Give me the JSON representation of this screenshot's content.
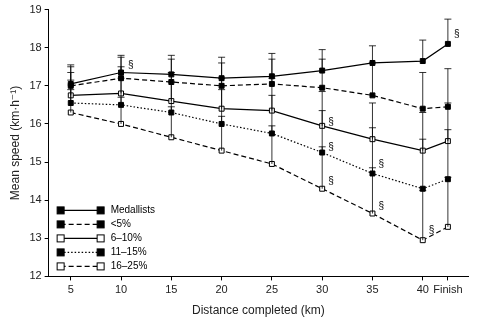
{
  "chart_data": {
    "type": "line",
    "x_label": "Distance completed (km)",
    "y_label": "Mean speed (km·h⁻¹)",
    "x": [
      5,
      10,
      15,
      20,
      25,
      30,
      35,
      40,
      42.5
    ],
    "xlim": [
      2.8,
      44.5
    ],
    "xticks": [
      5,
      10,
      15,
      20,
      25,
      30,
      35,
      40,
      {
        "value": 42.5,
        "label": "Finish"
      }
    ],
    "ylim": [
      12,
      19
    ],
    "yticks": [
      12,
      13,
      14,
      15,
      16,
      17,
      18,
      19
    ],
    "grid": false,
    "legend": "lower left",
    "series": [
      {
        "name": "Medallists",
        "color": "#000000",
        "marker": "square",
        "line_style": "solid",
        "values": [
          17.05,
          17.35,
          17.3,
          17.2,
          17.25,
          17.4,
          17.6,
          17.65,
          18.1
        ],
        "errors": [
          0.5,
          0.45,
          0.5,
          0.55,
          0.6,
          0.55,
          0.45,
          0.55,
          0.65
        ]
      },
      {
        "name": "<5%",
        "color": "#000000",
        "marker": "square",
        "line_style": "dashed",
        "values": [
          17.0,
          17.2,
          17.1,
          17.0,
          17.05,
          16.95,
          16.75,
          16.4,
          16.45
        ],
        "errors": [
          0.5,
          0.55,
          0.6,
          0.6,
          0.65,
          0.75,
          0.85,
          0.95,
          1.0
        ]
      },
      {
        "name": "6–10%",
        "color": "#000000",
        "marker": "square-open",
        "line_style": "solid",
        "values": [
          16.75,
          16.8,
          16.6,
          16.4,
          16.35,
          15.95,
          15.6,
          15.3,
          15.55
        ],
        "errors": [
          0.6,
          0.7,
          0.75,
          0.8,
          0.85,
          0.9,
          0.95,
          1.0,
          1.0
        ]
      },
      {
        "name": "11–15%",
        "color": "#000000",
        "marker": "square",
        "line_style": "dotted",
        "values": [
          16.55,
          16.5,
          16.3,
          16.0,
          15.75,
          15.25,
          14.7,
          14.3,
          14.55
        ],
        "errors": [
          0.6,
          0.7,
          0.8,
          0.9,
          1.0,
          1.1,
          1.2,
          1.3,
          1.3
        ]
      },
      {
        "name": "16–25%",
        "color": "#000000",
        "marker": "square-open",
        "line_style": "dashed",
        "values": [
          16.3,
          16.0,
          15.65,
          15.3,
          14.95,
          14.3,
          13.65,
          12.95,
          13.3
        ],
        "errors": [
          0.6,
          0.7,
          0.8,
          0.9,
          1.0,
          1.1,
          1.2,
          1.3,
          1.3
        ]
      }
    ],
    "annotations": [
      {
        "text": "§",
        "x": 10.7,
        "y": 17.55
      },
      {
        "text": "§",
        "x": 30.6,
        "y": 16.05
      },
      {
        "text": "§",
        "x": 30.6,
        "y": 15.4
      },
      {
        "text": "§",
        "x": 30.6,
        "y": 14.5
      },
      {
        "text": "§",
        "x": 35.6,
        "y": 14.95
      },
      {
        "text": "§",
        "x": 35.6,
        "y": 13.85
      },
      {
        "text": "§",
        "x": 40.6,
        "y": 13.2
      },
      {
        "text": "§",
        "x": 43.1,
        "y": 18.35
      }
    ]
  }
}
